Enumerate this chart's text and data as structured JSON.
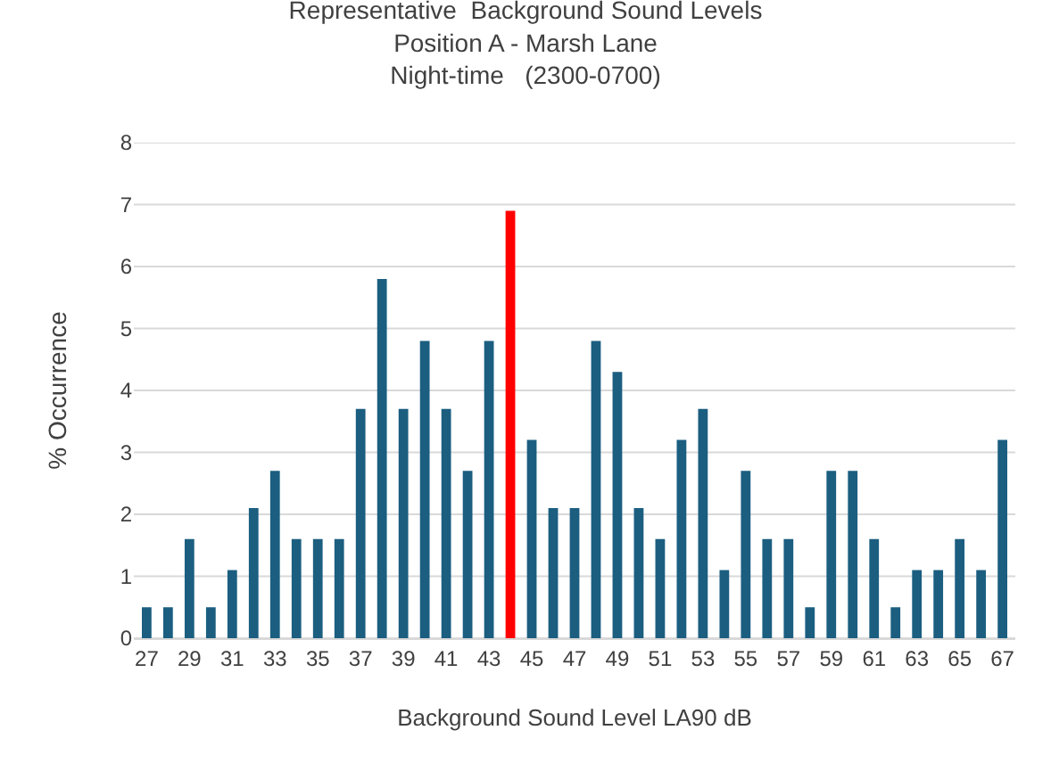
{
  "chart_data": {
    "type": "bar",
    "title": "Representative  Background Sound Levels\nPosition A - Marsh Lane\nNight-time   (2300-0700)",
    "xlabel": "Background Sound Level LA90 dB",
    "ylabel": "% Occurrence",
    "categories": [
      "27",
      null,
      "29",
      null,
      "31",
      null,
      "33",
      null,
      "35",
      null,
      "37",
      null,
      "39",
      null,
      "41",
      null,
      "43",
      null,
      "45",
      null,
      "47",
      null,
      "49",
      null,
      "51",
      null,
      "53",
      null,
      "55",
      null,
      "57",
      null,
      "59",
      null,
      "61",
      null,
      "63",
      null,
      "65",
      null,
      "67"
    ],
    "values": [
      0.5,
      0.5,
      1.6,
      0.5,
      1.1,
      2.1,
      2.7,
      1.6,
      1.6,
      1.6,
      3.7,
      5.8,
      3.7,
      4.8,
      3.7,
      2.7,
      4.8,
      6.9,
      3.2,
      2.1,
      2.1,
      4.8,
      4.3,
      2.1,
      1.6,
      3.2,
      3.7,
      1.1,
      2.7,
      1.6,
      1.6,
      0.5,
      2.7,
      2.7,
      1.6,
      0.5,
      1.1,
      1.1,
      1.6,
      1.1,
      3.2
    ],
    "colors": [
      "#1b5e80",
      "#1b5e80",
      "#1b5e80",
      "#1b5e80",
      "#1b5e80",
      "#1b5e80",
      "#1b5e80",
      "#1b5e80",
      "#1b5e80",
      "#1b5e80",
      "#1b5e80",
      "#1b5e80",
      "#1b5e80",
      "#1b5e80",
      "#1b5e80",
      "#1b5e80",
      "#1b5e80",
      "#ff0000",
      "#1b5e80",
      "#1b5e80",
      "#1b5e80",
      "#1b5e80",
      "#1b5e80",
      "#1b5e80",
      "#1b5e80",
      "#1b5e80",
      "#1b5e80",
      "#1b5e80",
      "#1b5e80",
      "#1b5e80",
      "#1b5e80",
      "#1b5e80",
      "#1b5e80",
      "#1b5e80",
      "#1b5e80",
      "#1b5e80",
      "#1b5e80",
      "#1b5e80",
      "#1b5e80",
      "#1b5e80",
      "#1b5e80"
    ],
    "ylim": [
      0,
      8
    ],
    "yticks": [
      0,
      1,
      2,
      3,
      4,
      5,
      6,
      7,
      8
    ],
    "grid": "y"
  }
}
